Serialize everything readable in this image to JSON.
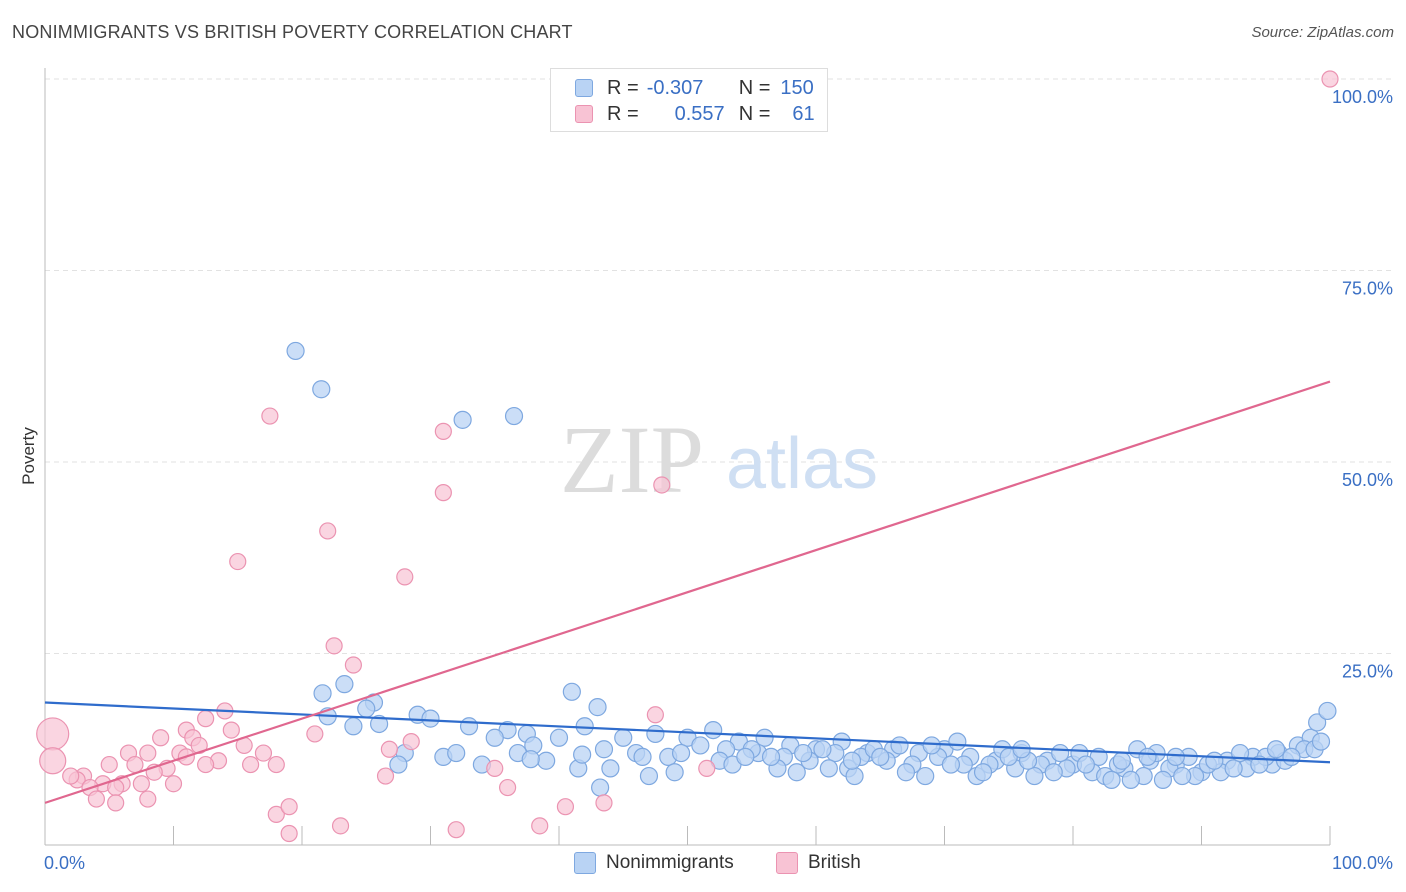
{
  "header": {
    "title": "NONIMMIGRANTS VS BRITISH POVERTY CORRELATION CHART",
    "source": "Source: ZipAtlas.com"
  },
  "watermark": {
    "zip": "ZIP",
    "atlas": "atlas"
  },
  "legend": {
    "rows": [
      {
        "r_label": "R =",
        "r_value": "-0.307",
        "n_label": "N =",
        "n_value": "150"
      },
      {
        "r_label": "R =",
        "r_value": "0.557",
        "n_label": "N =",
        "n_value": "61"
      }
    ]
  },
  "colors": {
    "blue_fill": "#b9d3f4",
    "blue_stroke": "#7ea8e0",
    "blue_line": "#2f6ccc",
    "pink_fill": "#f8c3d4",
    "pink_stroke": "#eb93b1",
    "pink_line": "#e0678f",
    "tick_label": "#3a6fc4",
    "grid": "#e2e2e2"
  },
  "chart_data": {
    "type": "scatter",
    "title": "NONIMMIGRANTS VS BRITISH POVERTY CORRELATION CHART",
    "xlabel": "",
    "ylabel": "Poverty",
    "xlim": [
      0,
      100
    ],
    "ylim": [
      0,
      100
    ],
    "x_tick_labels": [
      "0.0%",
      "100.0%"
    ],
    "y_ticks": [
      25,
      50,
      75,
      100
    ],
    "y_tick_labels": [
      "25.0%",
      "50.0%",
      "75.0%",
      "100.0%"
    ],
    "grid": true,
    "legend_position": "bottom",
    "series": [
      {
        "name": "Nonimmigrants",
        "r": -0.307,
        "n": 150,
        "trend": [
          [
            0,
            18.6
          ],
          [
            100,
            10.8
          ]
        ],
        "points": [
          [
            19.5,
            64.5
          ],
          [
            21.5,
            59.5
          ],
          [
            32.5,
            55.5
          ],
          [
            36.5,
            56.0
          ],
          [
            21.6,
            19.8
          ],
          [
            23.3,
            21.0
          ],
          [
            41.0,
            20.0
          ],
          [
            25.6,
            18.6
          ],
          [
            43.0,
            18.0
          ],
          [
            25.0,
            17.8
          ],
          [
            29.0,
            17.0
          ],
          [
            22.0,
            16.8
          ],
          [
            26.0,
            15.8
          ],
          [
            24.0,
            15.5
          ],
          [
            36.0,
            15.0
          ],
          [
            37.5,
            14.5
          ],
          [
            40.0,
            14.0
          ],
          [
            42.0,
            15.5
          ],
          [
            45.0,
            14.0
          ],
          [
            47.5,
            14.5
          ],
          [
            50.0,
            14.0
          ],
          [
            52.0,
            15.0
          ],
          [
            54.0,
            13.5
          ],
          [
            56.0,
            14.0
          ],
          [
            58.0,
            13.0
          ],
          [
            60.0,
            12.5
          ],
          [
            62.0,
            13.5
          ],
          [
            64.0,
            12.0
          ],
          [
            66.0,
            12.5
          ],
          [
            68.0,
            12.0
          ],
          [
            70.0,
            12.5
          ],
          [
            72.0,
            11.5
          ],
          [
            74.0,
            11.0
          ],
          [
            76.0,
            12.0
          ],
          [
            78.0,
            11.0
          ],
          [
            80.0,
            10.5
          ],
          [
            82.0,
            11.5
          ],
          [
            84.0,
            10.0
          ],
          [
            86.0,
            11.0
          ],
          [
            88.0,
            10.5
          ],
          [
            90.0,
            9.5
          ],
          [
            92.0,
            11.0
          ],
          [
            94.0,
            11.5
          ],
          [
            96.0,
            12.0
          ],
          [
            97.5,
            13.0
          ],
          [
            98.5,
            14.0
          ],
          [
            99.0,
            16.0
          ],
          [
            99.8,
            17.5
          ],
          [
            30.0,
            16.5
          ],
          [
            33.0,
            15.5
          ],
          [
            35.0,
            14.0
          ],
          [
            38.0,
            13.0
          ],
          [
            43.5,
            12.5
          ],
          [
            46.0,
            12.0
          ],
          [
            48.5,
            11.5
          ],
          [
            51.0,
            13.0
          ],
          [
            53.0,
            12.5
          ],
          [
            55.5,
            12.0
          ],
          [
            57.5,
            11.5
          ],
          [
            59.5,
            11.0
          ],
          [
            61.5,
            12.0
          ],
          [
            63.5,
            11.5
          ],
          [
            65.5,
            11.0
          ],
          [
            67.5,
            10.5
          ],
          [
            69.5,
            11.5
          ],
          [
            71.5,
            10.5
          ],
          [
            73.5,
            10.5
          ],
          [
            75.5,
            10.0
          ],
          [
            77.5,
            10.5
          ],
          [
            79.5,
            10.0
          ],
          [
            81.5,
            9.5
          ],
          [
            83.5,
            10.5
          ],
          [
            85.5,
            9.0
          ],
          [
            87.5,
            10.0
          ],
          [
            89.5,
            9.0
          ],
          [
            91.5,
            9.5
          ],
          [
            93.5,
            10.0
          ],
          [
            95.5,
            10.5
          ],
          [
            28.0,
            12.0
          ],
          [
            31.0,
            11.5
          ],
          [
            34.0,
            10.5
          ],
          [
            39.0,
            11.0
          ],
          [
            44.0,
            10.0
          ],
          [
            49.0,
            9.5
          ],
          [
            27.5,
            10.5
          ],
          [
            32.0,
            12.0
          ],
          [
            36.8,
            12.0
          ],
          [
            41.5,
            10.0
          ],
          [
            46.5,
            11.5
          ],
          [
            52.5,
            11.0
          ],
          [
            57.0,
            10.0
          ],
          [
            62.5,
            10.0
          ],
          [
            67.0,
            9.5
          ],
          [
            72.5,
            9.0
          ],
          [
            77.0,
            9.0
          ],
          [
            82.5,
            9.0
          ],
          [
            84.5,
            8.5
          ],
          [
            87.0,
            8.5
          ],
          [
            47.0,
            9.0
          ],
          [
            53.5,
            10.5
          ],
          [
            58.5,
            9.5
          ],
          [
            63.0,
            9.0
          ],
          [
            68.5,
            9.0
          ],
          [
            73.0,
            9.5
          ],
          [
            78.5,
            9.5
          ],
          [
            83.0,
            8.5
          ],
          [
            88.5,
            9.0
          ],
          [
            92.5,
            10.0
          ],
          [
            96.5,
            11.0
          ],
          [
            98.0,
            12.5
          ],
          [
            43.2,
            7.5
          ],
          [
            41.8,
            11.8
          ],
          [
            37.8,
            11.2
          ],
          [
            59.0,
            12.0
          ],
          [
            64.5,
            12.5
          ],
          [
            69.0,
            13.0
          ],
          [
            74.5,
            12.5
          ],
          [
            79.0,
            12.0
          ],
          [
            85.0,
            12.5
          ],
          [
            89.0,
            11.5
          ],
          [
            93.0,
            12.0
          ],
          [
            95.0,
            11.5
          ],
          [
            49.5,
            12.0
          ],
          [
            55.0,
            12.5
          ],
          [
            60.5,
            12.5
          ],
          [
            66.5,
            13.0
          ],
          [
            71.0,
            13.5
          ],
          [
            76.5,
            11.0
          ],
          [
            80.5,
            12.0
          ],
          [
            86.5,
            12.0
          ],
          [
            90.5,
            10.5
          ],
          [
            94.5,
            10.5
          ],
          [
            97.0,
            11.5
          ],
          [
            98.8,
            12.5
          ],
          [
            61.0,
            10.0
          ],
          [
            65.0,
            11.5
          ],
          [
            70.5,
            10.5
          ],
          [
            75.0,
            11.5
          ],
          [
            81.0,
            10.5
          ],
          [
            85.8,
            11.5
          ],
          [
            91.0,
            11.0
          ],
          [
            95.8,
            12.5
          ],
          [
            99.3,
            13.5
          ],
          [
            56.5,
            11.5
          ],
          [
            54.5,
            11.5
          ],
          [
            62.8,
            11.0
          ],
          [
            83.8,
            11.0
          ],
          [
            88.0,
            11.5
          ],
          [
            76.0,
            12.5
          ]
        ]
      },
      {
        "name": "British",
        "r": 0.557,
        "n": 61,
        "trend": [
          [
            0,
            5.5
          ],
          [
            100,
            60.5
          ]
        ],
        "points": [
          [
            100,
            100
          ],
          [
            17.5,
            56.0
          ],
          [
            31.0,
            54.0
          ],
          [
            31.0,
            46.0
          ],
          [
            15.0,
            37.0
          ],
          [
            22.0,
            41.0
          ],
          [
            28.0,
            35.0
          ],
          [
            48.0,
            47.0
          ],
          [
            22.5,
            26.0
          ],
          [
            24.0,
            23.5
          ],
          [
            47.5,
            17.0
          ],
          [
            14.0,
            17.5
          ],
          [
            12.5,
            16.5
          ],
          [
            11.0,
            15.0
          ],
          [
            14.5,
            15.0
          ],
          [
            21.0,
            14.5
          ],
          [
            9.0,
            14.0
          ],
          [
            11.5,
            14.0
          ],
          [
            12.0,
            13.0
          ],
          [
            15.5,
            13.0
          ],
          [
            17.0,
            12.0
          ],
          [
            6.5,
            12.0
          ],
          [
            8.0,
            12.0
          ],
          [
            10.5,
            12.0
          ],
          [
            11.0,
            11.5
          ],
          [
            13.5,
            11.0
          ],
          [
            16.0,
            10.5
          ],
          [
            18.0,
            10.5
          ],
          [
            5.0,
            10.5
          ],
          [
            7.0,
            10.5
          ],
          [
            9.5,
            10.0
          ],
          [
            12.5,
            10.5
          ],
          [
            3.0,
            9.0
          ],
          [
            4.5,
            8.0
          ],
          [
            6.0,
            8.0
          ],
          [
            7.5,
            8.0
          ],
          [
            10.0,
            8.0
          ],
          [
            2.5,
            8.5
          ],
          [
            2.0,
            9.0
          ],
          [
            3.5,
            7.5
          ],
          [
            4.0,
            6.0
          ],
          [
            5.5,
            7.5
          ],
          [
            8.0,
            6.0
          ],
          [
            18.0,
            4.0
          ],
          [
            19.0,
            5.0
          ],
          [
            23.0,
            2.5
          ],
          [
            32.0,
            2.0
          ],
          [
            38.5,
            2.5
          ],
          [
            43.5,
            5.5
          ],
          [
            36.0,
            7.5
          ],
          [
            40.5,
            5.0
          ],
          [
            35.0,
            10.0
          ],
          [
            51.5,
            10.0
          ],
          [
            26.5,
            9.0
          ],
          [
            28.5,
            13.5
          ],
          [
            26.8,
            12.5
          ],
          [
            19.0,
            1.5
          ],
          [
            0.6,
            14.5
          ],
          [
            0.6,
            11.0
          ],
          [
            8.5,
            9.5
          ],
          [
            5.5,
            5.5
          ]
        ]
      }
    ]
  },
  "legend_bottom": {
    "items": [
      "Nonimmigrants",
      "British"
    ]
  }
}
